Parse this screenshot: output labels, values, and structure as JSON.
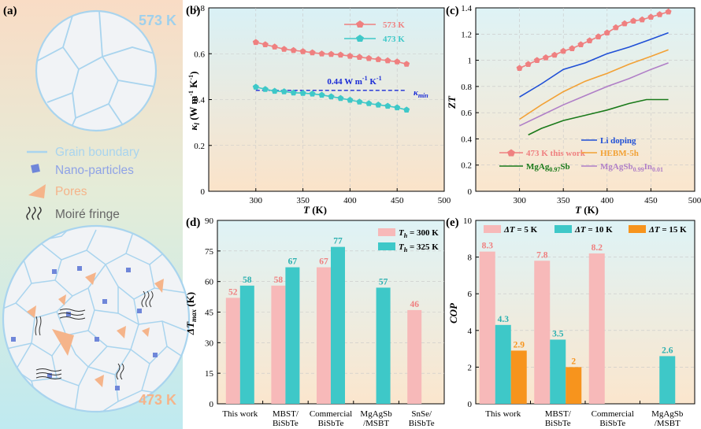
{
  "colors": {
    "pink": "#ef8080",
    "pink_bar": "#f7b9b9",
    "cyan": "#3ec8c8",
    "orange": "#f7941d",
    "blue_line": "#1f4fd6",
    "orange_line": "#f2a135",
    "purple_line": "#b07fc7",
    "green_line": "#1a7a1a",
    "grain": "#a9d4ee",
    "nano": "#6f86d9",
    "pore": "#f5b48a"
  },
  "panel_a": {
    "label": "(a)",
    "top_temp": "573 K",
    "bottom_temp": "473 K",
    "legend": [
      {
        "icon": "grain-boundary-icon",
        "text": "Grain boundary",
        "color": "#a9d4ee"
      },
      {
        "icon": "nano-particle-icon",
        "text": "Nano-particles",
        "color": "#8fa3e6"
      },
      {
        "icon": "pore-icon",
        "text": "Pores",
        "color": "#f5b48a"
      },
      {
        "icon": "moire-fringe-icon",
        "text": "Moiré fringe",
        "color": "#666666"
      }
    ]
  },
  "chart_data": [
    {
      "panel": "(b)",
      "type": "line",
      "xlabel_main": "T",
      "xlabel_unit": " (K)",
      "ylabel": "κl (W m-1 K-1)",
      "xlim": [
        250,
        500
      ],
      "ylim": [
        0,
        0.8
      ],
      "xticks": [
        "300",
        "350",
        "400",
        "450",
        "500"
      ],
      "yticks": [
        "0",
        "0.2",
        "0.4",
        "0.6",
        "0.8"
      ],
      "series": [
        {
          "name": "573 K",
          "color": "#ef8080",
          "x": [
            300,
            310,
            320,
            330,
            340,
            350,
            360,
            370,
            380,
            390,
            400,
            410,
            420,
            430,
            440,
            450,
            460
          ],
          "y": [
            0.65,
            0.64,
            0.63,
            0.62,
            0.615,
            0.61,
            0.605,
            0.6,
            0.598,
            0.595,
            0.59,
            0.585,
            0.58,
            0.575,
            0.57,
            0.565,
            0.555
          ]
        },
        {
          "name": "473 K",
          "color": "#3ec8c8",
          "x": [
            300,
            310,
            320,
            330,
            340,
            350,
            360,
            370,
            380,
            390,
            400,
            410,
            420,
            430,
            440,
            450,
            460
          ],
          "y": [
            0.455,
            0.445,
            0.437,
            0.435,
            0.43,
            0.428,
            0.425,
            0.42,
            0.413,
            0.406,
            0.398,
            0.39,
            0.383,
            0.377,
            0.372,
            0.365,
            0.355
          ]
        }
      ],
      "reference": {
        "y": 0.44,
        "x": [
          300,
          460
        ],
        "label": "0.44 W m-1 K-1",
        "kmin_label": "κmin",
        "color": "#1a2bd6"
      },
      "legend_position": "top-right"
    },
    {
      "panel": "(c)",
      "type": "line",
      "xlabel_main": "T",
      "xlabel_unit": " (K)",
      "ylabel": "ZT",
      "xlim": [
        250,
        500
      ],
      "ylim": [
        0,
        1.4
      ],
      "xticks": [
        "300",
        "350",
        "400",
        "450",
        "500"
      ],
      "yticks": [
        "0",
        "0.2",
        "0.4",
        "0.6",
        "0.8",
        "1",
        "1.2",
        "1.4"
      ],
      "series": [
        {
          "name": "473 K this work",
          "color": "#ef8080",
          "markers": true,
          "x": [
            300,
            310,
            320,
            330,
            340,
            350,
            360,
            370,
            380,
            390,
            400,
            410,
            420,
            430,
            440,
            450,
            460,
            470
          ],
          "y": [
            0.94,
            0.97,
            1.0,
            1.02,
            1.04,
            1.07,
            1.09,
            1.12,
            1.15,
            1.18,
            1.21,
            1.25,
            1.28,
            1.3,
            1.31,
            1.33,
            1.35,
            1.37
          ]
        },
        {
          "name": "Li doping",
          "color": "#1f4fd6",
          "x": [
            300,
            325,
            350,
            375,
            400,
            425,
            450,
            470
          ],
          "y": [
            0.72,
            0.82,
            0.93,
            0.98,
            1.05,
            1.1,
            1.16,
            1.21
          ]
        },
        {
          "name": "HEBM-5h",
          "color": "#f2a135",
          "x": [
            300,
            325,
            350,
            375,
            400,
            425,
            450,
            470
          ],
          "y": [
            0.55,
            0.66,
            0.76,
            0.84,
            0.9,
            0.97,
            1.03,
            1.08
          ]
        },
        {
          "name": "MgAgSb0.99In0.01",
          "color": "#b07fc7",
          "x": [
            300,
            325,
            350,
            375,
            400,
            425,
            450,
            470
          ],
          "y": [
            0.5,
            0.58,
            0.66,
            0.73,
            0.8,
            0.86,
            0.93,
            0.98
          ]
        },
        {
          "name": "MgAg0.97Sb",
          "color": "#1a7a1a",
          "x": [
            310,
            325,
            350,
            375,
            400,
            425,
            445,
            470
          ],
          "y": [
            0.43,
            0.48,
            0.54,
            0.58,
            0.62,
            0.67,
            0.7,
            0.7
          ]
        }
      ],
      "legend_position": "bottom"
    },
    {
      "panel": "(d)",
      "type": "bar",
      "ylabel": "ΔTmax (K)",
      "ylim": [
        0,
        90
      ],
      "yticks": [
        "0",
        "15",
        "30",
        "45",
        "60",
        "75",
        "90"
      ],
      "categories": [
        [
          "This work"
        ],
        [
          "MBST/",
          "BiSbTe"
        ],
        [
          "Commercial",
          "BiSbTe"
        ],
        [
          "MgAgSb",
          "/MSBT"
        ],
        [
          "SnSe/",
          "BiSbTe"
        ]
      ],
      "series": [
        {
          "name": "Th = 300 K",
          "color": "#f7b9b9",
          "label_color": "#ef8080",
          "values": [
            52,
            58,
            67,
            null,
            46
          ]
        },
        {
          "name": "Th = 325 K",
          "color": "#3ec8c8",
          "label_color": "#2ab0b0",
          "values": [
            58,
            67,
            77,
            57,
            null
          ]
        }
      ],
      "legend_position": "top-right"
    },
    {
      "panel": "(e)",
      "type": "bar",
      "ylabel": "COP",
      "ylim": [
        0,
        10
      ],
      "yticks": [
        "0",
        "2",
        "4",
        "6",
        "8",
        "10"
      ],
      "categories": [
        [
          "This work"
        ],
        [
          "MBST/",
          "BiSbTe"
        ],
        [
          "Commercial",
          "BiSbTe"
        ],
        [
          "MgAgSb",
          "/MSBT"
        ]
      ],
      "series": [
        {
          "name": "ΔT = 5 K",
          "color": "#f7b9b9",
          "label_color": "#ef8080",
          "values": [
            8.3,
            7.8,
            8.2,
            null
          ]
        },
        {
          "name": "ΔT = 10 K",
          "color": "#3ec8c8",
          "label_color": "#2ab0b0",
          "values": [
            4.3,
            3.5,
            null,
            2.6
          ]
        },
        {
          "name": "ΔT = 15 K",
          "color": "#f7941d",
          "label_color": "#f7941d",
          "values": [
            2.9,
            2,
            null,
            null
          ]
        }
      ],
      "legend_position": "top"
    }
  ]
}
